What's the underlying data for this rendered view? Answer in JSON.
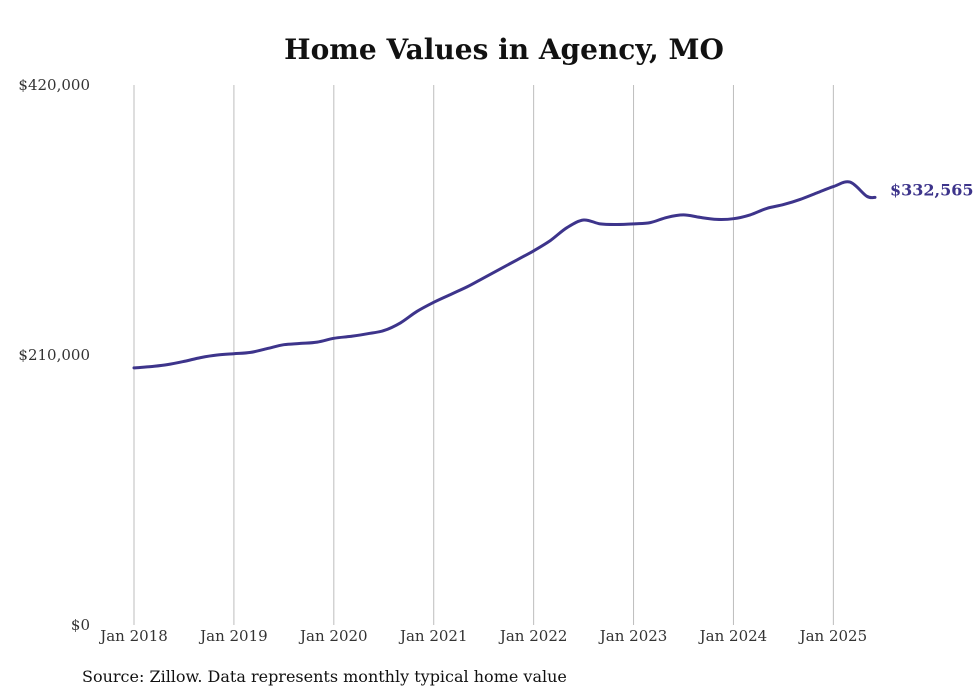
{
  "colors": {
    "line": "#3d348b",
    "grid": "#bdbdbd",
    "text": "#333333"
  },
  "chart_data": {
    "type": "line",
    "title": "Home Values in Agency, MO",
    "xlabel": "",
    "ylabel": "",
    "ylim": [
      0,
      420000
    ],
    "y_ticks": [
      0,
      210000,
      420000
    ],
    "y_tick_labels": [
      "$0",
      "$210,000",
      "$420,000"
    ],
    "x_ticks": [
      "2018-01",
      "2019-01",
      "2020-01",
      "2021-01",
      "2022-01",
      "2023-01",
      "2024-01",
      "2025-01"
    ],
    "x_tick_labels": [
      "Jan 2018",
      "Jan 2019",
      "Jan 2020",
      "Jan 2021",
      "Jan 2022",
      "Jan 2023",
      "Jan 2024",
      "Jan 2025"
    ],
    "xlim": [
      "2018-01",
      "2025-06"
    ],
    "grid": "vertical",
    "end_label": "$332,565",
    "series": [
      {
        "x": [
          "2018-01",
          "2018-03",
          "2018-05",
          "2018-07",
          "2018-09",
          "2018-11",
          "2019-01",
          "2019-03",
          "2019-05",
          "2019-07",
          "2019-09",
          "2019-11",
          "2020-01",
          "2020-03",
          "2020-05",
          "2020-07",
          "2020-09",
          "2020-11",
          "2021-01",
          "2021-03",
          "2021-05",
          "2021-07",
          "2021-09",
          "2021-11",
          "2022-01",
          "2022-03",
          "2022-05",
          "2022-07",
          "2022-09",
          "2022-11",
          "2023-01",
          "2023-03",
          "2023-05",
          "2023-07",
          "2023-09",
          "2023-11",
          "2024-01",
          "2024-03",
          "2024-05",
          "2024-07",
          "2024-09",
          "2024-11",
          "2025-01",
          "2025-03",
          "2025-05",
          "2025-06"
        ],
        "y": [
          200000,
          201000,
          202500,
          205000,
          208000,
          210000,
          211000,
          212000,
          215000,
          218000,
          219000,
          220000,
          223000,
          224500,
          226500,
          229000,
          235000,
          244000,
          251000,
          257000,
          263000,
          270000,
          277000,
          284000,
          291000,
          299000,
          309000,
          315000,
          312000,
          311500,
          312000,
          313000,
          317000,
          319000,
          317000,
          315500,
          316000,
          319000,
          324000,
          327000,
          331000,
          336000,
          341000,
          344500,
          333500,
          332565
        ]
      }
    ]
  },
  "footer": {
    "source": "Source: Zillow. Data represents monthly typical home value"
  }
}
